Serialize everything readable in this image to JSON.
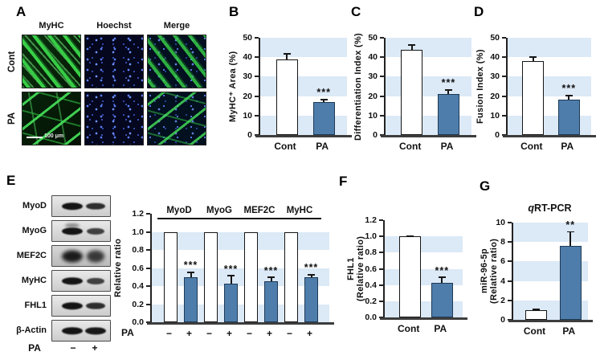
{
  "style": {
    "band_color": "#dce9f6",
    "bar_blue_fill": "#4e7dab",
    "bar_blue_border": "#1e3a55",
    "bar_white_fill": "#ffffff",
    "axis_color": "#3d3d3d"
  },
  "panels": {
    "a": "A",
    "b": "B",
    "c": "C",
    "d": "D",
    "e": "E",
    "f": "F",
    "g": "G"
  },
  "panel_a": {
    "col_headers": [
      "MyHC",
      "Hoechst",
      "Merge"
    ],
    "row_labels": [
      "Cont",
      "PA"
    ],
    "scale_bar_label": "100 μm"
  },
  "western_blot": {
    "rows": [
      {
        "label": "MyoD",
        "lanes": [
          1.0,
          0.7
        ]
      },
      {
        "label": "MyoG",
        "lanes": [
          1.0,
          0.5
        ],
        "smear": true
      },
      {
        "label": "MEF2C",
        "lanes": [
          0.9,
          0.55
        ],
        "fuzzy": true
      },
      {
        "label": "MyHC",
        "lanes": [
          1.0,
          0.5
        ]
      },
      {
        "label": "FHL1",
        "lanes": [
          1.0,
          0.7
        ]
      },
      {
        "label": "β-Actin",
        "lanes": [
          1.0,
          0.95
        ]
      }
    ],
    "lane_axis_title": "PA",
    "lane_labels": [
      "−",
      "+"
    ]
  },
  "chart_data": [
    {
      "panel": "B",
      "type": "bar",
      "ylabel": [
        "MyHC⁺ Area (%)"
      ],
      "ylim": [
        0,
        50
      ],
      "ystep": 10,
      "decimals": 0,
      "categories": [
        "Cont",
        "PA"
      ],
      "values": [
        39,
        17
      ],
      "errors": [
        3,
        1.5
      ],
      "sig": [
        "",
        "***"
      ],
      "fills": [
        "white",
        "blue"
      ],
      "grid": "alternating-bands",
      "legend": "none"
    },
    {
      "panel": "C",
      "type": "bar",
      "ylabel": [
        "Differentiation Index (%)"
      ],
      "ylim": [
        0,
        50
      ],
      "ystep": 10,
      "decimals": 0,
      "categories": [
        "Cont",
        "PA"
      ],
      "values": [
        44,
        21
      ],
      "errors": [
        2.5,
        2.5
      ],
      "sig": [
        "",
        "***"
      ],
      "fills": [
        "white",
        "blue"
      ],
      "grid": "alternating-bands",
      "legend": "none"
    },
    {
      "panel": "D",
      "type": "bar",
      "ylabel": [
        "Fusion Index (%)"
      ],
      "ylim": [
        0,
        50
      ],
      "ystep": 10,
      "decimals": 0,
      "categories": [
        "Cont",
        "PA"
      ],
      "values": [
        38,
        18
      ],
      "errors": [
        2.5,
        2.5
      ],
      "sig": [
        "",
        "***"
      ],
      "fills": [
        "white",
        "blue"
      ],
      "grid": "alternating-bands",
      "legend": "none"
    },
    {
      "panel": "E",
      "type": "grouped_bar",
      "ylabel": [
        "Relative ratio"
      ],
      "ylim": [
        0,
        1.2
      ],
      "ystep": 0.2,
      "decimals": 1,
      "x_axis_title": "PA",
      "group_labels": [
        "MyoD",
        "MyoG",
        "MEF2C",
        "MyHC"
      ],
      "bar_labels": [
        "−",
        "+"
      ],
      "series": [
        {
          "name": "PA −",
          "fill": "white",
          "values": [
            1.0,
            1.0,
            1.0,
            1.0
          ],
          "errors": [
            0,
            0,
            0,
            0
          ],
          "sig": [
            "",
            "",
            "",
            ""
          ]
        },
        {
          "name": "PA +",
          "fill": "blue",
          "values": [
            0.5,
            0.43,
            0.45,
            0.5
          ],
          "errors": [
            0.06,
            0.09,
            0.05,
            0.03
          ],
          "sig": [
            "***",
            "***",
            "***",
            "***"
          ]
        }
      ],
      "grid": "alternating-bands",
      "legend": "none"
    },
    {
      "panel": "F",
      "type": "bar",
      "ylabel": [
        "FHL1",
        "(Relative ratio)"
      ],
      "ylim": [
        0,
        1.2
      ],
      "ystep": 0.2,
      "decimals": 1,
      "categories": [
        "Cont",
        "PA"
      ],
      "values": [
        1.0,
        0.43
      ],
      "errors": [
        0.01,
        0.07
      ],
      "sig": [
        "",
        "***"
      ],
      "fills": [
        "white",
        "blue"
      ],
      "grid": "alternating-bands",
      "legend": "none"
    },
    {
      "panel": "G",
      "type": "bar",
      "title": "qRT-PCR",
      "title_italic_first": true,
      "ylabel": [
        "miR-96-5p",
        "(Relative ratio)"
      ],
      "ylim": [
        0,
        10
      ],
      "ystep": 2,
      "decimals": 0,
      "categories": [
        "Cont",
        "PA"
      ],
      "values": [
        1.0,
        7.6
      ],
      "errors": [
        0.15,
        1.5
      ],
      "sig": [
        "",
        "**"
      ],
      "fills": [
        "white",
        "blue"
      ],
      "grid": "alternating-bands",
      "legend": "none"
    }
  ]
}
